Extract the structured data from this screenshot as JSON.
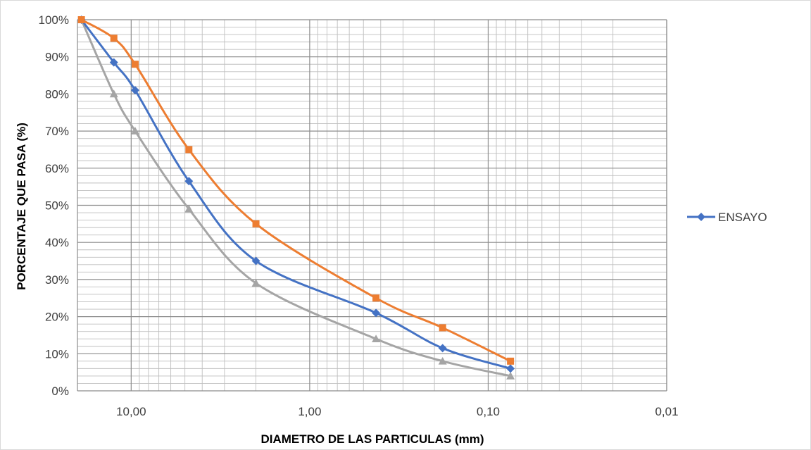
{
  "chart_data": {
    "type": "line",
    "x_scale": "log",
    "x_reversed": true,
    "xlim": [
      20,
      0.01
    ],
    "ylim": [
      0,
      100
    ],
    "xlabel": "DIAMETRO DE LAS PARTICULAS (mm)",
    "ylabel": "PORCENTAJE QUE PASA (%)",
    "x_tick_labels": [
      "10,00",
      "1,00",
      "0,10",
      "0,01"
    ],
    "y_tick_labels": [
      "0%",
      "10%",
      "20%",
      "30%",
      "40%",
      "50%",
      "60%",
      "70%",
      "80%",
      "90%",
      "100%"
    ],
    "grid": true,
    "legend_position": "right",
    "series": [
      {
        "name": "ENSAYO",
        "color": "#4472c4",
        "marker": "diamond",
        "x": [
          19.0,
          12.5,
          9.5,
          4.75,
          2.0,
          0.425,
          0.18,
          0.075
        ],
        "y": [
          100,
          88.5,
          81,
          56.5,
          35,
          21,
          11.5,
          6
        ]
      },
      {
        "color": "#ed7d31",
        "marker": "square",
        "x": [
          19.0,
          12.5,
          9.5,
          4.75,
          2.0,
          0.425,
          0.18,
          0.075
        ],
        "y": [
          100,
          95,
          88,
          65,
          45,
          25,
          17,
          8
        ]
      },
      {
        "color": "#a5a5a5",
        "marker": "triangle",
        "x": [
          19.0,
          12.5,
          9.5,
          4.75,
          2.0,
          0.425,
          0.18,
          0.075
        ],
        "y": [
          100,
          80,
          70,
          49,
          29,
          14,
          8,
          4
        ]
      }
    ]
  }
}
